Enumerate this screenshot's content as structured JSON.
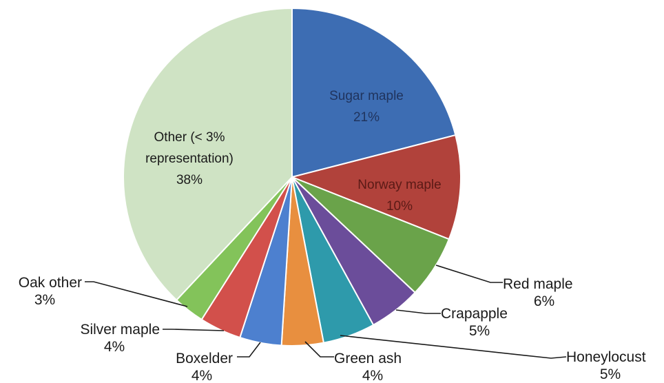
{
  "chart_data": {
    "type": "pie",
    "title": "",
    "start_angle_deg": 0,
    "direction": "clockwise",
    "slices": [
      {
        "label": "Sugar maple",
        "value": 21,
        "pct_label": "21%",
        "color": "#3d6db3",
        "text_color": "#20345e",
        "label_mode": "inside"
      },
      {
        "label": "Norway maple",
        "value": 10,
        "pct_label": "10%",
        "color": "#b1423b",
        "text_color": "#5b1a16",
        "label_mode": "inside"
      },
      {
        "label": "Red maple",
        "value": 6,
        "pct_label": "6%",
        "color": "#6aa34a",
        "text_color": "#1a1a1a",
        "label_mode": "outside"
      },
      {
        "label": "Crapapple",
        "value": 5,
        "pct_label": "5%",
        "color": "#6b4d9a",
        "text_color": "#1a1a1a",
        "label_mode": "outside"
      },
      {
        "label": "Honeylocust",
        "value": 5,
        "pct_label": "5%",
        "color": "#2e9aab",
        "text_color": "#1a1a1a",
        "label_mode": "outside"
      },
      {
        "label": "Green ash",
        "value": 4,
        "pct_label": "4%",
        "color": "#e88f3f",
        "text_color": "#1a1a1a",
        "label_mode": "outside"
      },
      {
        "label": "Boxelder",
        "value": 4,
        "pct_label": "4%",
        "color": "#4d80cf",
        "text_color": "#1a1a1a",
        "label_mode": "outside"
      },
      {
        "label": "Silver maple",
        "value": 4,
        "pct_label": "4%",
        "color": "#d2504b",
        "text_color": "#1a1a1a",
        "label_mode": "outside"
      },
      {
        "label": "Oak other",
        "value": 3,
        "pct_label": "3%",
        "color": "#83c35a",
        "text_color": "#1a1a1a",
        "label_mode": "outside"
      },
      {
        "label": "Other (< 3% representation)",
        "label_lines": [
          "Other (< 3%",
          "representation)"
        ],
        "value": 38,
        "pct_label": "38%",
        "color": "#cfe3c4",
        "text_color": "#1a1a1a",
        "label_mode": "inside"
      }
    ]
  }
}
